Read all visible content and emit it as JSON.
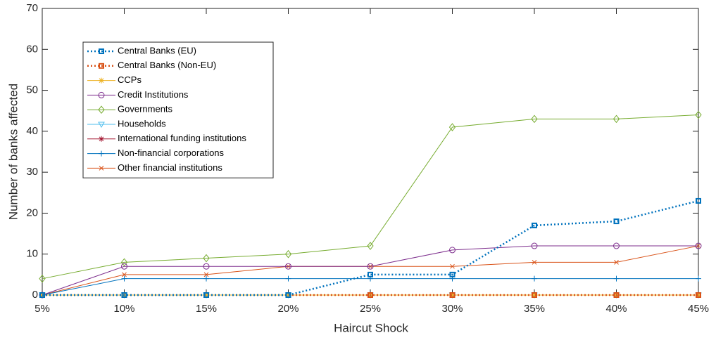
{
  "chart_data": {
    "type": "line",
    "x_label": "Haircut Shock",
    "y_label": "Number of banks affected",
    "categories": [
      "5%",
      "10%",
      "15%",
      "20%",
      "25%",
      "30%",
      "35%",
      "40%",
      "45%"
    ],
    "ylim": [
      0,
      70
    ],
    "yticks": [
      0,
      10,
      20,
      30,
      40,
      50,
      60,
      70
    ],
    "legend": "upper left",
    "series": [
      {
        "name": "Central Banks (EU)",
        "color": "#0072bd",
        "marker": "square",
        "dash": "dotted",
        "values": [
          0,
          0,
          0,
          0,
          5,
          5,
          17,
          18,
          23
        ]
      },
      {
        "name": "Central Banks (Non-EU)",
        "color": "#d95319",
        "marker": "square",
        "dash": "dotted",
        "values": [
          0,
          0,
          0,
          0,
          0,
          0,
          0,
          0,
          0
        ]
      },
      {
        "name": "CCPs",
        "color": "#edb120",
        "marker": "star",
        "dash": "solid",
        "values": [
          0,
          0,
          0,
          0,
          0,
          0,
          0,
          0,
          0
        ]
      },
      {
        "name": "Credit Institutions",
        "color": "#7e2f8e",
        "marker": "circle",
        "dash": "solid",
        "values": [
          0,
          7,
          7,
          7,
          7,
          11,
          12,
          12,
          12
        ]
      },
      {
        "name": "Governments",
        "color": "#77ac30",
        "marker": "diamond",
        "dash": "solid",
        "values": [
          4,
          8,
          9,
          10,
          12,
          41,
          43,
          43,
          44
        ]
      },
      {
        "name": "Households",
        "color": "#4dbeee",
        "marker": "triangle-down",
        "dash": "solid",
        "values": [
          0,
          0,
          0,
          0,
          0,
          0,
          0,
          0,
          0
        ]
      },
      {
        "name": "International funding institutions",
        "color": "#a2142f",
        "marker": "star",
        "dash": "solid",
        "values": [
          0,
          0,
          0,
          0,
          0,
          0,
          0,
          0,
          0
        ]
      },
      {
        "name": "Non-financial corporations",
        "color": "#0072bd",
        "marker": "plus",
        "dash": "solid",
        "values": [
          0,
          4,
          4,
          4,
          4,
          4,
          4,
          4,
          4
        ]
      },
      {
        "name": "Other financial institutions",
        "color": "#d95319",
        "marker": "x",
        "dash": "solid",
        "values": [
          0,
          5,
          5,
          7,
          7,
          7,
          8,
          8,
          12
        ]
      }
    ]
  }
}
